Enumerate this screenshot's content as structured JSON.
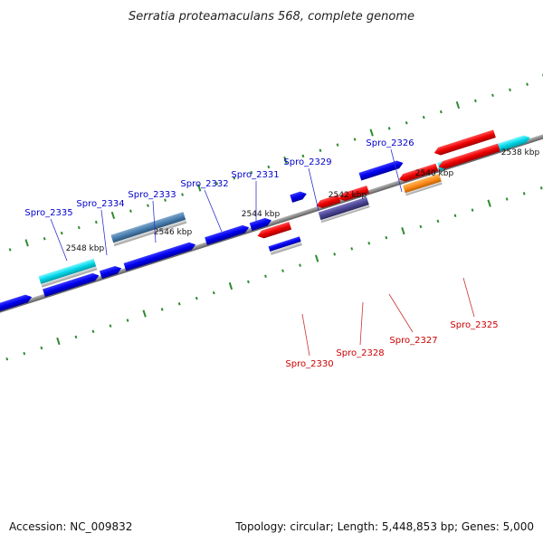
{
  "title": "Serratia proteamaculans 568, complete genome",
  "footer": {
    "accession": "Accession: NC_009832",
    "topology": "Topology: circular; Length: 5,448,853 bp; Genes: 5,000"
  },
  "colors": {
    "forward_label": "#0000cc",
    "reverse_label": "#cc0000",
    "tick": "#2e8b2e",
    "backbone": "#8a8a8a"
  },
  "scale_labels": [
    "2548 kbp",
    "2546 kbp",
    "2544 kbp",
    "2542 kbp",
    "2540 kbp",
    "2538 kbp"
  ],
  "genes": [
    {
      "name": "Spro_2335",
      "strand": "forward",
      "color": "#00d8e8"
    },
    {
      "name": "Spro_2334",
      "strand": "forward",
      "color": "#0000ff"
    },
    {
      "name": "Spro_2333",
      "strand": "forward",
      "color": "#4a7fb0"
    },
    {
      "name": "Spro_2332",
      "strand": "forward",
      "color": "#0000ff"
    },
    {
      "name": "Spro_2331",
      "strand": "forward",
      "color": "#0000ff"
    },
    {
      "name": "Spro_2329",
      "strand": "forward",
      "color": "#0000ff"
    },
    {
      "name": "Spro_2326",
      "strand": "forward",
      "color": "#0000ff"
    },
    {
      "name": "Spro_2330",
      "strand": "reverse",
      "color": "#ff0000"
    },
    {
      "name": "Spro_2328",
      "strand": "reverse",
      "color": "#ff0000"
    },
    {
      "name": "Spro_2327",
      "strand": "reverse",
      "color": "#4b4594"
    },
    {
      "name": "Spro_2325",
      "strand": "reverse",
      "color": "#ff8c1a"
    }
  ]
}
